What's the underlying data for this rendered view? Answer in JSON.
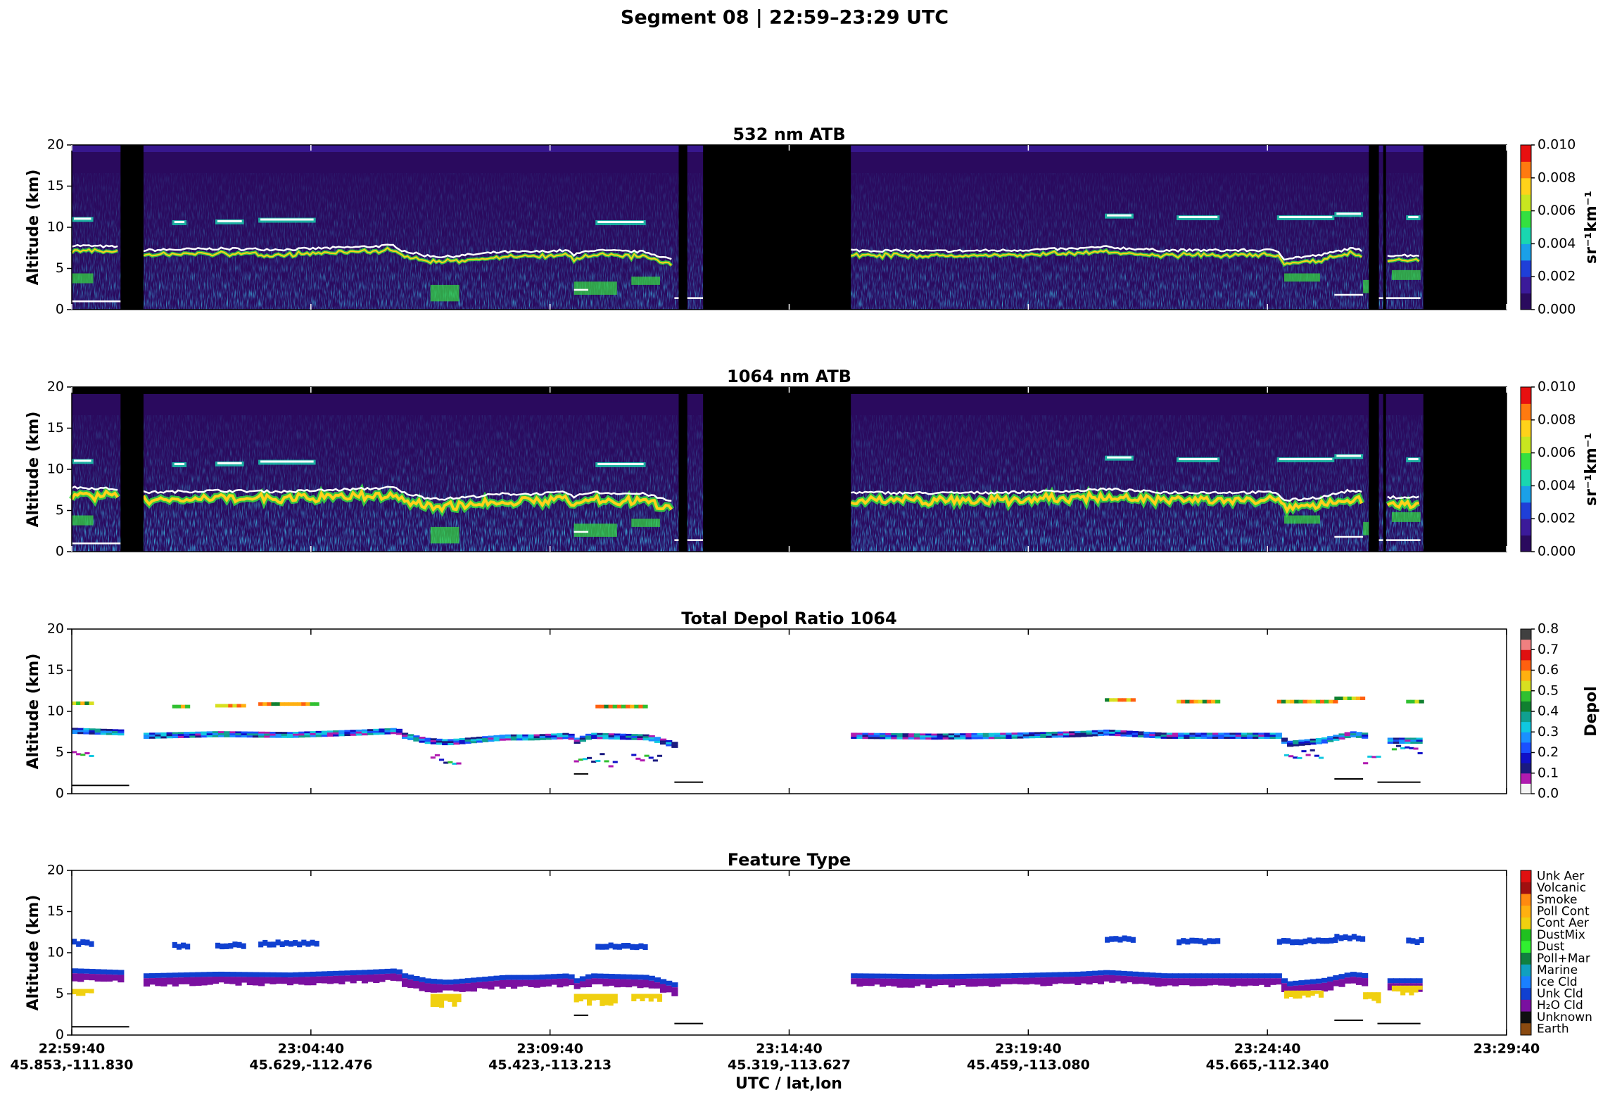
{
  "title": "Segment 08  |  22:59–23:29 UTC",
  "xlabel": "UTC / lat,lon",
  "xticks": [
    {
      "time": "22:59:40",
      "latlon": "45.853,-111.830"
    },
    {
      "time": "23:04:40",
      "latlon": "45.629,-112.476"
    },
    {
      "time": "23:09:40",
      "latlon": "45.423,-113.213"
    },
    {
      "time": "23:14:40",
      "latlon": "45.319,-113.627"
    },
    {
      "time": "23:19:40",
      "latlon": "45.459,-113.080"
    },
    {
      "time": "23:24:40",
      "latlon": "45.665,-112.340"
    },
    {
      "time": "23:29:40"
    }
  ],
  "chart_data": [
    {
      "type": "curtain",
      "title": "532 nm ATB",
      "ylabel": "Altitude (km)",
      "ylim": [
        0,
        20
      ],
      "yticks": [
        0,
        5,
        10,
        15,
        20
      ],
      "colorbar": {
        "label": "sr⁻¹km⁻¹",
        "lim": [
          0,
          0.01
        ],
        "ticks": [
          {
            "value": 0,
            "label": "0.000"
          },
          {
            "value": 0.002,
            "label": "0.002"
          },
          {
            "value": 0.004,
            "label": "0.004"
          },
          {
            "value": 0.006,
            "label": "0.006"
          },
          {
            "value": 0.008,
            "label": "0.008"
          },
          {
            "value": 0.01,
            "label": "0.010"
          }
        ],
        "colors": [
          "#2a0a5e",
          "#3b1a9a",
          "#1f3fd8",
          "#1aa0e8",
          "#19d6b0",
          "#34e040",
          "#c8e620",
          "#ffd21a",
          "#ff7a10",
          "#e81010"
        ]
      }
    },
    {
      "type": "curtain",
      "title": "1064 nm ATB",
      "ylabel": "Altitude (km)",
      "ylim": [
        0,
        20
      ],
      "yticks": [
        0,
        5,
        10,
        15,
        20
      ],
      "colorbar": {
        "label": "sr⁻¹km⁻¹",
        "lim": [
          0,
          0.01
        ],
        "ticks": [
          {
            "value": 0,
            "label": "0.000"
          },
          {
            "value": 0.002,
            "label": "0.002"
          },
          {
            "value": 0.004,
            "label": "0.004"
          },
          {
            "value": 0.006,
            "label": "0.006"
          },
          {
            "value": 0.008,
            "label": "0.008"
          },
          {
            "value": 0.01,
            "label": "0.010"
          }
        ],
        "colors": [
          "#2a0a5e",
          "#3b1a9a",
          "#1f3fd8",
          "#1aa0e8",
          "#19d6b0",
          "#34e040",
          "#c8e620",
          "#ffd21a",
          "#ff7a10",
          "#e81010"
        ]
      }
    },
    {
      "type": "depol",
      "title": "Total Depol Ratio 1064",
      "ylabel": "Altitude (km)",
      "ylim": [
        0,
        20
      ],
      "yticks": [
        0,
        5,
        10,
        15,
        20
      ],
      "colorbar": {
        "label": "Depol",
        "lim": [
          0,
          0.8
        ],
        "ticks": [
          {
            "value": 0,
            "label": "0.0"
          },
          0.1,
          0.2,
          0.3,
          0.4,
          0.5,
          0.6,
          0.7,
          0.8
        ],
        "colors": [
          "#f4f4f4",
          "#b01ab0",
          "#1a1a80",
          "#1010c8",
          "#1a50ff",
          "#1a90ff",
          "#10c8e0",
          "#10a090",
          "#108030",
          "#30c030",
          "#d8e020",
          "#ffb010",
          "#ff6010",
          "#e01010",
          "#f08080",
          "#404040"
        ]
      }
    },
    {
      "type": "feature",
      "title": "Feature Type",
      "ylabel": "Altitude (km)",
      "ylim": [
        0,
        20
      ],
      "yticks": [
        0,
        5,
        10,
        15,
        20
      ],
      "colorbar": {
        "categories": [
          "Unk Aer",
          "Volcanic",
          "Smoke",
          "Poll Cont",
          "Cont Aer",
          "DustMix",
          "Dust",
          "Poll+Mar",
          "Marine",
          "Ice Cld",
          "Unk Cld",
          "H₂O Cld",
          "Unknown",
          "Earth"
        ],
        "colors": [
          "#e01010",
          "#a01010",
          "#ff8a10",
          "#ffb010",
          "#f0d010",
          "#20c020",
          "#30f030",
          "#108040",
          "#10a0c0",
          "#1a80ff",
          "#1040d0",
          "#7a10a0",
          "#101010",
          "#8a4a10"
        ]
      }
    }
  ]
}
